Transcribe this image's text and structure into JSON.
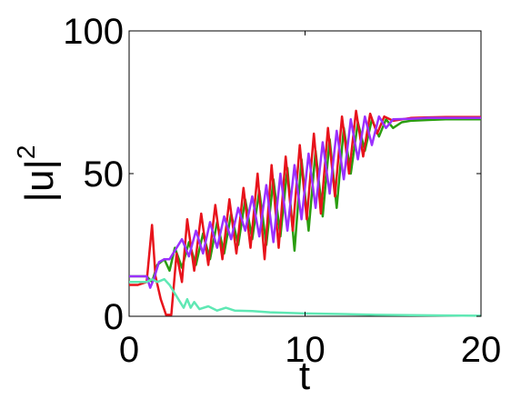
{
  "chart_data": {
    "type": "line",
    "title": "",
    "xlabel": "t",
    "ylabel_base": "|u|",
    "ylabel_superscript": "2",
    "xlim": [
      0,
      20
    ],
    "ylim": [
      0,
      100
    ],
    "xticks": [
      "0",
      "10",
      "20"
    ],
    "yticks": [
      "0",
      "50",
      "100"
    ],
    "grid": false,
    "legend": "none",
    "series": [
      {
        "color": "#2a9d0f",
        "x": [
          0,
          0.5,
          1.0,
          1.3,
          1.6,
          2.0,
          2.3,
          2.6,
          3.0,
          3.4,
          3.8,
          4.2,
          4.6,
          5.0,
          5.4,
          5.8,
          6.2,
          6.6,
          7.0,
          7.4,
          7.8,
          8.2,
          8.6,
          9.0,
          9.4,
          9.8,
          10.2,
          10.6,
          11.0,
          11.4,
          11.8,
          12.2,
          12.6,
          13.0,
          13.4,
          13.8,
          14.2,
          14.6,
          15.0,
          15.5,
          16.0,
          17.0,
          18.0,
          19.0,
          20.0
        ],
        "y": [
          14,
          14,
          14,
          12,
          18,
          20,
          16,
          24,
          17,
          26,
          18,
          29,
          20,
          33,
          22,
          36,
          25,
          41,
          27,
          44,
          25,
          48,
          28,
          52,
          23,
          55,
          30,
          58,
          35,
          62,
          38,
          66,
          50,
          68,
          58,
          69,
          63,
          69,
          66,
          68,
          68.5,
          68.8,
          69,
          69,
          69
        ]
      },
      {
        "color": "#e8131b",
        "x": [
          0,
          0.5,
          1.0,
          1.3,
          1.5,
          1.8,
          2.1,
          2.4,
          2.7,
          3.0,
          3.3,
          3.7,
          4.1,
          4.5,
          4.9,
          5.3,
          5.7,
          6.1,
          6.5,
          6.9,
          7.3,
          7.7,
          8.1,
          8.5,
          8.9,
          9.3,
          9.7,
          10.1,
          10.5,
          10.9,
          11.3,
          11.7,
          12.1,
          12.5,
          12.9,
          13.3,
          13.7,
          14.1,
          14.5,
          15.0,
          16.0,
          17.0,
          18.0,
          19.0,
          20.0
        ],
        "y": [
          11,
          11,
          12,
          32,
          14,
          6,
          0.5,
          0.5,
          22,
          12,
          34,
          16,
          36,
          18,
          39,
          20,
          41,
          22,
          45,
          24,
          50,
          20,
          53,
          24,
          56,
          30,
          60,
          34,
          64,
          36,
          66,
          42,
          70,
          50,
          72,
          56,
          71,
          64,
          70,
          68.5,
          69.5,
          69.7,
          69.8,
          69.8,
          69.8
        ]
      },
      {
        "color": "#9b30ff",
        "x": [
          0,
          0.5,
          1.0,
          1.2,
          1.4,
          1.7,
          2.0,
          2.3,
          2.6,
          3.0,
          3.4,
          3.8,
          4.2,
          4.6,
          5.0,
          5.4,
          5.8,
          6.2,
          6.6,
          7.0,
          7.4,
          7.8,
          8.2,
          8.6,
          9.0,
          9.4,
          9.8,
          10.2,
          10.6,
          11.0,
          11.4,
          11.8,
          12.2,
          12.6,
          13.0,
          13.4,
          13.8,
          14.2,
          14.6,
          15.0,
          16.0,
          17.0,
          18.0,
          19.0,
          20.0
        ],
        "y": [
          14,
          14,
          14,
          10,
          13,
          19,
          20,
          20,
          23,
          27,
          21,
          30,
          22,
          33,
          24,
          35,
          27,
          38,
          30,
          42,
          28,
          46,
          26,
          50,
          30,
          53,
          34,
          57,
          38,
          61,
          43,
          65,
          48,
          69,
          55,
          70,
          60,
          70,
          66,
          69,
          69.2,
          69.5,
          69.5,
          69.5,
          69.5
        ]
      },
      {
        "color": "#5fe8b4",
        "x": [
          0,
          0.5,
          1.0,
          1.3,
          1.6,
          2.0,
          2.3,
          2.6,
          2.9,
          3.1,
          3.3,
          3.5,
          3.7,
          4.0,
          4.5,
          5.0,
          5.5,
          6.0,
          7.0,
          8.0,
          9.0,
          10.0,
          12.0,
          14.0,
          16.0,
          18.0,
          20.0
        ],
        "y": [
          12,
          12,
          12,
          13,
          12,
          13,
          11,
          8,
          5,
          3,
          6,
          3,
          5,
          2.5,
          3.5,
          2,
          3,
          2,
          1.8,
          1.4,
          1.2,
          1.0,
          0.8,
          0.5,
          0.4,
          0.3,
          0.2
        ]
      }
    ]
  }
}
